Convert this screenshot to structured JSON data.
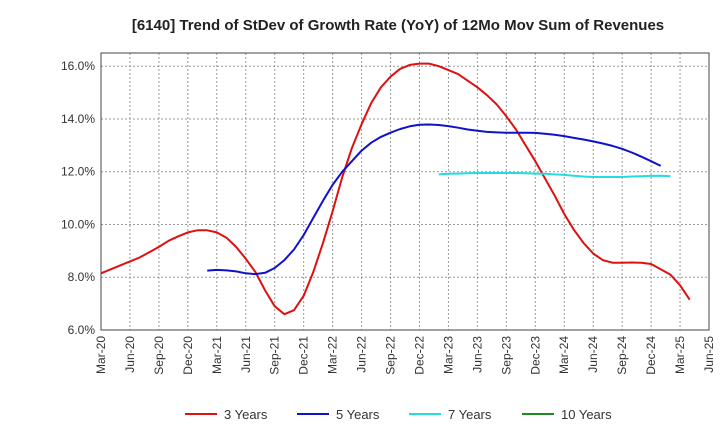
{
  "chart_data": {
    "type": "line",
    "title": "[6140]  Trend of StDev of Growth Rate (YoY) of 12Mo Mov Sum of Revenues",
    "xlabel": "",
    "ylabel": "",
    "ylim": [
      6.0,
      16.5
    ],
    "yticks": [
      6.0,
      8.0,
      10.0,
      12.0,
      14.0,
      16.0
    ],
    "ytick_labels": [
      "6.0%",
      "8.0%",
      "10.0%",
      "12.0%",
      "14.0%",
      "16.0%"
    ],
    "x_start": "2020-03",
    "x_end": "2025-06",
    "xtick_labels": [
      "Mar-20",
      "Jun-20",
      "Sep-20",
      "Dec-20",
      "Mar-21",
      "Jun-21",
      "Sep-21",
      "Dec-21",
      "Mar-22",
      "Jun-22",
      "Sep-22",
      "Dec-22",
      "Mar-23",
      "Jun-23",
      "Sep-23",
      "Dec-23",
      "Mar-24",
      "Jun-24",
      "Sep-24",
      "Dec-24",
      "Mar-25",
      "Jun-25"
    ],
    "grid": true,
    "legend_position": "bottom",
    "series": [
      {
        "name": "3 Years",
        "color": "#dd1111",
        "start": "2020-03",
        "values": [
          8.15,
          8.3,
          8.45,
          8.6,
          8.75,
          8.95,
          9.15,
          9.38,
          9.55,
          9.7,
          9.78,
          9.78,
          9.7,
          9.5,
          9.15,
          8.7,
          8.2,
          7.5,
          6.9,
          6.6,
          6.75,
          7.3,
          8.2,
          9.3,
          10.5,
          11.8,
          12.9,
          13.8,
          14.6,
          15.2,
          15.6,
          15.9,
          16.05,
          16.1,
          16.1,
          16.0,
          15.85,
          15.7,
          15.45,
          15.2,
          14.9,
          14.55,
          14.1,
          13.6,
          13.0,
          12.4,
          11.75,
          11.1,
          10.4,
          9.8,
          9.3,
          8.9,
          8.65,
          8.55,
          8.55,
          8.56,
          8.55,
          8.5,
          8.3,
          8.1,
          7.7,
          7.15
        ]
      },
      {
        "name": "5 Years",
        "color": "#1111cc",
        "start": "2021-02",
        "values": [
          8.25,
          8.28,
          8.26,
          8.22,
          8.15,
          8.12,
          8.17,
          8.35,
          8.65,
          9.05,
          9.6,
          10.25,
          10.9,
          11.5,
          12.0,
          12.4,
          12.8,
          13.1,
          13.32,
          13.48,
          13.62,
          13.72,
          13.78,
          13.79,
          13.77,
          13.73,
          13.67,
          13.6,
          13.55,
          13.51,
          13.49,
          13.48,
          13.48,
          13.48,
          13.47,
          13.44,
          13.4,
          13.35,
          13.28,
          13.22,
          13.15,
          13.07,
          12.98,
          12.87,
          12.73,
          12.57,
          12.4,
          12.22
        ]
      },
      {
        "name": "7 Years",
        "color": "#22dddd",
        "start": "2023-02",
        "values": [
          11.9,
          11.92,
          11.93,
          11.94,
          11.95,
          11.95,
          11.95,
          11.95,
          11.95,
          11.94,
          11.93,
          11.92,
          11.9,
          11.88,
          11.85,
          11.82,
          11.8,
          11.8,
          11.8,
          11.8,
          11.82,
          11.83,
          11.84,
          11.85,
          11.83
        ]
      },
      {
        "name": "10 Years",
        "color": "#228822",
        "start": "2025-03",
        "values": []
      }
    ]
  }
}
